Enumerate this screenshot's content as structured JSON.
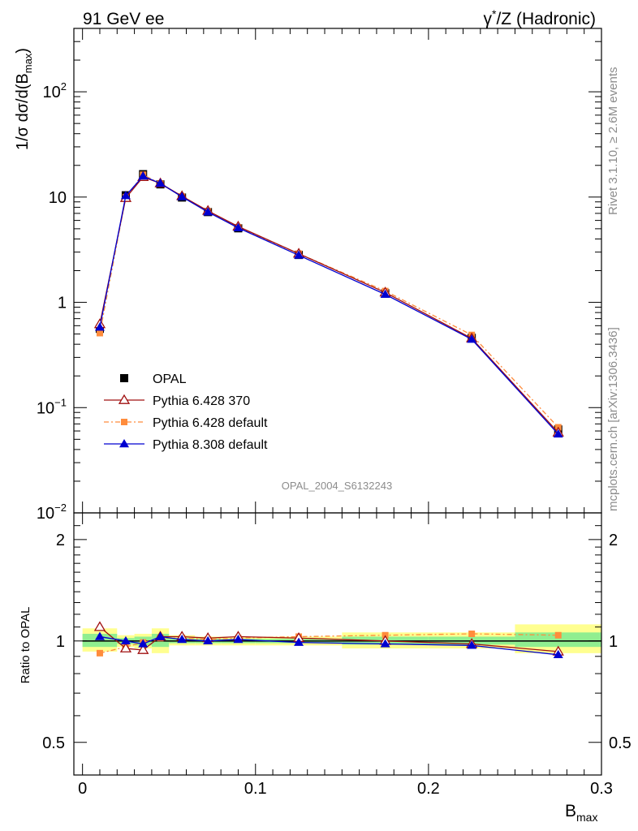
{
  "header": {
    "left": "91 GeV ee",
    "right_pre": "γ",
    "right_sup": "*",
    "right_post": "/Z (Hadronic)"
  },
  "side": {
    "rivet": "Rivet 3.1.10, ≥ 2.6M events",
    "mcplots": "mcplots.cern.ch [arXiv:1306.3436]"
  },
  "watermark": "OPAL_2004_S6132243",
  "top_ylabel": {
    "main": "1/σ dσ/d(B",
    "sub": "max",
    "close": ")"
  },
  "ratio_ylabel": "Ratio to OPAL",
  "xlabel": {
    "main": "B",
    "sub": "max"
  },
  "colors": {
    "data": "#000000",
    "p6_370": "#a01010",
    "p6_default": "#ff8c3c",
    "p8_default": "#0000d0",
    "band_inner": "#90ee90",
    "band_outer": "#ffff90"
  },
  "chart_data": {
    "type": "line",
    "x_axis": {
      "range": [
        -0.005,
        0.3
      ],
      "ticks": [
        0,
        0.1,
        0.2,
        0.3
      ],
      "tick_labels": [
        "0",
        "0.1",
        "0.2",
        "0.3"
      ]
    },
    "top_y_axis": {
      "scale": "log",
      "range": [
        0.01,
        400
      ],
      "ticks": [
        0.01,
        0.1,
        1,
        10,
        100
      ],
      "tick_labels": [
        {
          "base": "10",
          "exp": "−2"
        },
        {
          "base": "10",
          "exp": "−1"
        },
        {
          "base": "1",
          "exp": ""
        },
        {
          "base": "10",
          "exp": ""
        },
        {
          "base": "10",
          "exp": "2"
        }
      ]
    },
    "ratio_y_axis": {
      "scale": "log",
      "range": [
        0.4,
        2.4
      ],
      "ticks": [
        0.5,
        1,
        2
      ],
      "tick_labels": [
        "0.5",
        "1",
        "2"
      ]
    },
    "bins": [
      [
        0,
        0.02
      ],
      [
        0.02,
        0.03
      ],
      [
        0.03,
        0.04
      ],
      [
        0.04,
        0.05
      ],
      [
        0.05,
        0.065
      ],
      [
        0.065,
        0.08
      ],
      [
        0.08,
        0.1
      ],
      [
        0.1,
        0.15
      ],
      [
        0.15,
        0.2
      ],
      [
        0.2,
        0.25
      ],
      [
        0.25,
        0.3
      ]
    ],
    "x": [
      0.01,
      0.025,
      0.035,
      0.045,
      0.0575,
      0.0725,
      0.09,
      0.125,
      0.175,
      0.225,
      0.275
    ],
    "band_outer": [
      [
        0.93,
        1.09
      ],
      [
        0.96,
        1.04
      ],
      [
        0.95,
        1.05
      ],
      [
        0.92,
        1.09
      ],
      [
        0.97,
        1.04
      ],
      [
        0.97,
        1.03
      ],
      [
        0.97,
        1.03
      ],
      [
        0.97,
        1.03
      ],
      [
        0.95,
        1.06
      ],
      [
        0.95,
        1.06
      ],
      [
        0.92,
        1.12
      ]
    ],
    "band_inner": [
      [
        0.96,
        1.05
      ],
      [
        0.98,
        1.02
      ],
      [
        0.97,
        1.03
      ],
      [
        0.96,
        1.05
      ],
      [
        0.985,
        1.02
      ],
      [
        0.985,
        1.015
      ],
      [
        0.985,
        1.015
      ],
      [
        0.985,
        1.015
      ],
      [
        0.975,
        1.03
      ],
      [
        0.975,
        1.03
      ],
      [
        0.96,
        1.06
      ]
    ],
    "series": [
      {
        "name": "OPAL",
        "style": "data-square",
        "values": [
          0.56,
          10.4,
          16.5,
          13.2,
          9.9,
          7.2,
          5.05,
          2.82,
          1.22,
          0.46,
          0.062
        ],
        "ratio": [
          1,
          1,
          1,
          1,
          1,
          1,
          1,
          1,
          1,
          1,
          1
        ]
      },
      {
        "name": "Pythia 6.428 370",
        "style": "open-triangle",
        "values": [
          0.62,
          9.8,
          15.5,
          13.5,
          10.2,
          7.4,
          5.25,
          2.9,
          1.24,
          0.455,
          0.058
        ],
        "ratio": [
          1.1,
          0.95,
          0.94,
          1.03,
          1.03,
          1.02,
          1.03,
          1.02,
          1.0,
          0.98,
          0.93
        ]
      },
      {
        "name": "Pythia 6.428 default",
        "style": "filled-square-dashdot",
        "values": [
          0.51,
          10.0,
          16.3,
          13.4,
          10.1,
          7.3,
          5.15,
          2.9,
          1.28,
          0.49,
          0.065
        ],
        "ratio": [
          0.92,
          0.96,
          0.99,
          1.02,
          1.02,
          1.01,
          1.02,
          1.03,
          1.04,
          1.05,
          1.04
        ]
      },
      {
        "name": "Pythia 8.308 default",
        "style": "filled-triangle",
        "values": [
          0.58,
          10.3,
          15.8,
          13.5,
          10.05,
          7.2,
          5.1,
          2.8,
          1.19,
          0.445,
          0.056
        ],
        "ratio": [
          1.03,
          1.0,
          0.98,
          1.03,
          1.01,
          1.0,
          1.01,
          0.99,
          0.98,
          0.97,
          0.91
        ]
      }
    ]
  }
}
